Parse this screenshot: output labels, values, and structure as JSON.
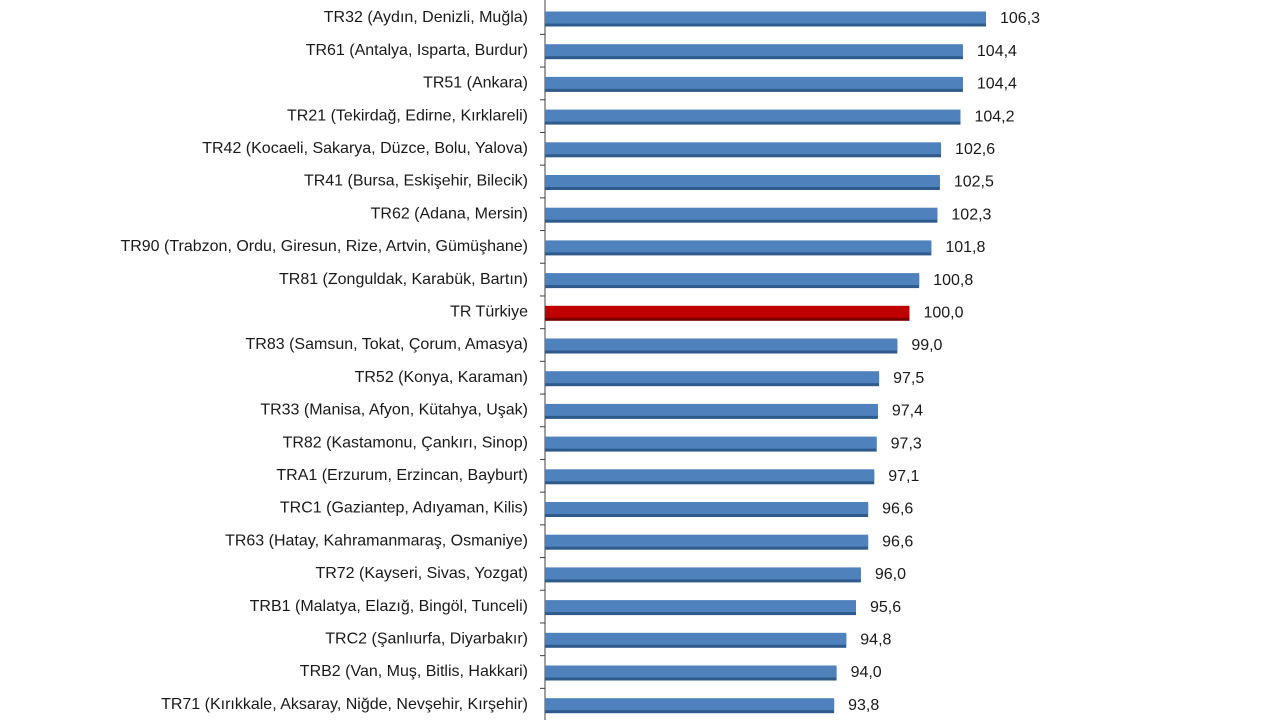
{
  "chart_data": {
    "type": "bar",
    "orientation": "horizontal",
    "categories": [
      "TR32 (Aydın, Denizli, Muğla)",
      "TR61 (Antalya, Isparta, Burdur)",
      "TR51 (Ankara)",
      "TR21 (Tekirdağ, Edirne, Kırklareli)",
      "TR42 (Kocaeli, Sakarya, Düzce, Bolu, Yalova)",
      "TR41 (Bursa, Eskişehir, Bilecik)",
      "TR62 (Adana, Mersin)",
      "TR90 (Trabzon, Ordu, Giresun, Rize, Artvin, Gümüşhane)",
      "TR81 (Zonguldak, Karabük, Bartın)",
      "TR Türkiye",
      "TR83 (Samsun, Tokat, Çorum, Amasya)",
      "TR52 (Konya, Karaman)",
      "TR33 (Manisa, Afyon, Kütahya, Uşak)",
      "TR82 (Kastamonu, Çankırı, Sinop)",
      "TRA1 (Erzurum, Erzincan, Bayburt)",
      "TRC1 (Gaziantep, Adıyaman, Kilis)",
      "TR63 (Hatay, Kahramanmaraş, Osmaniye)",
      "TR72 (Kayseri, Sivas, Yozgat)",
      "TRB1 (Malatya, Elazığ, Bingöl, Tunceli)",
      "TRC2 (Şanlıurfa, Diyarbakır)",
      "TRB2 (Van, Muş, Bitlis, Hakkari)",
      "TR71 (Kırıkkale, Aksaray, Niğde, Nevşehir, Kırşehir)"
    ],
    "values": [
      106.3,
      104.4,
      104.4,
      104.2,
      102.6,
      102.5,
      102.3,
      101.8,
      100.8,
      100.0,
      99.0,
      97.5,
      97.4,
      97.3,
      97.1,
      96.6,
      96.6,
      96.0,
      95.6,
      94.8,
      94.0,
      93.8
    ],
    "value_labels": [
      "106,3",
      "104,4",
      "104,4",
      "104,2",
      "102,6",
      "102,5",
      "102,3",
      "101,8",
      "100,8",
      "100,0",
      "99,0",
      "97,5",
      "97,4",
      "97,3",
      "97,1",
      "96,6",
      "96,6",
      "96,0",
      "95,6",
      "94,8",
      "94,0",
      "93,8"
    ],
    "highlight_index": 9,
    "colors": {
      "bar": "#4f81bd",
      "bar_shadow": "#2e5a8c",
      "highlight": "#c00000",
      "highlight_shadow": "#7a0000",
      "axis": "#404040"
    },
    "xlim": [
      70,
      110
    ],
    "grid": false,
    "legend": "none"
  }
}
